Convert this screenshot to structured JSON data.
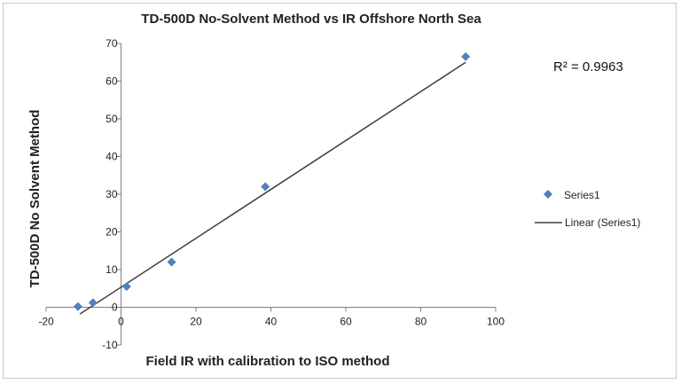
{
  "chart_data": {
    "type": "scatter",
    "title": "TD-500D No-Solvent Method vs IR Offshore North Sea",
    "xlabel": "Field IR with calibration to ISO method",
    "ylabel": "TD-500D No Solvent Method",
    "xlim": [
      -20,
      100
    ],
    "ylim": [
      -10,
      70
    ],
    "x_ticks": [
      -20,
      0,
      20,
      40,
      60,
      80,
      100
    ],
    "y_ticks": [
      -10,
      0,
      10,
      20,
      30,
      40,
      50,
      60,
      70
    ],
    "x_tick_labels": [
      "-20",
      "0",
      "20",
      "40",
      "60",
      "80",
      "100"
    ],
    "y_tick_labels": [
      "-10",
      "0",
      "10",
      "20",
      "30",
      "40",
      "50",
      "60",
      "70"
    ],
    "grid": false,
    "legend_position": "right",
    "r_squared_label": "R² = 0.9963",
    "series": [
      {
        "name": "Series1",
        "color": "#4f81bd",
        "marker": "diamond",
        "points": [
          {
            "x": -11.5,
            "y": 0.2
          },
          {
            "x": -7.5,
            "y": 1.2
          },
          {
            "x": 1.5,
            "y": 5.5
          },
          {
            "x": 13.5,
            "y": 12
          },
          {
            "x": 38.5,
            "y": 32
          },
          {
            "x": 92,
            "y": 66.5
          }
        ]
      }
    ],
    "trendline": {
      "name": "Linear (Series1)",
      "type": "linear",
      "color": "#404040",
      "x_start": -11,
      "y_start": -1.8,
      "x_end": 92,
      "y_end": 65
    }
  }
}
